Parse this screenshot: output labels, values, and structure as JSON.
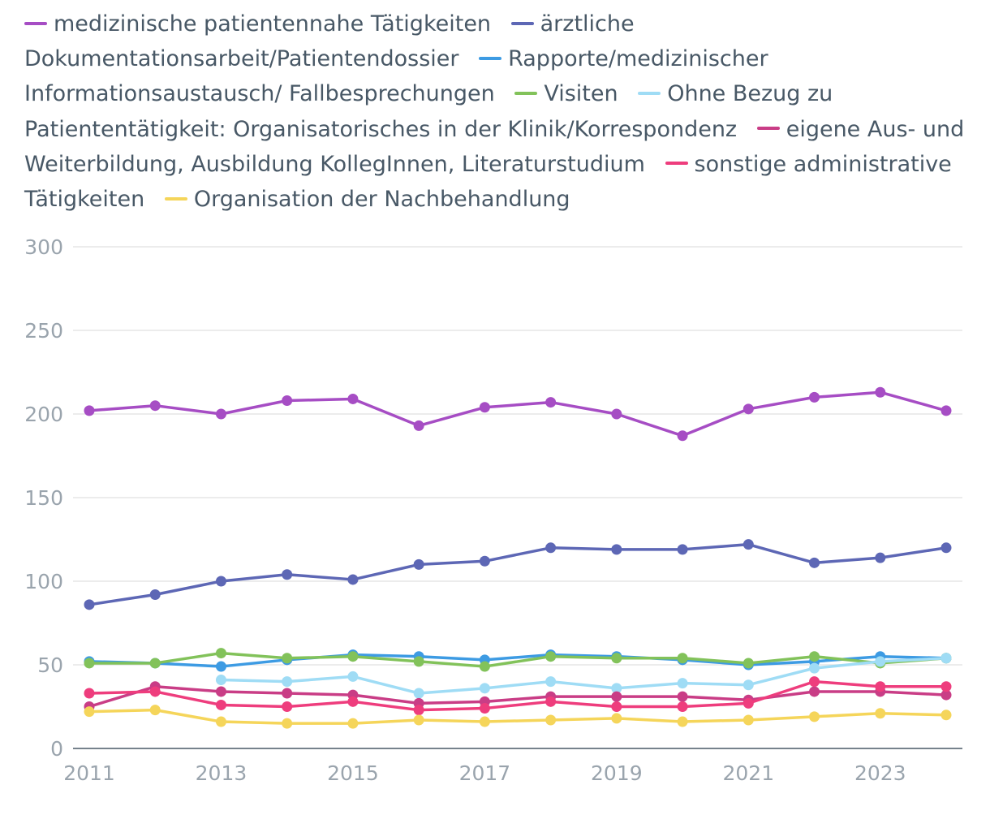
{
  "chart_data": {
    "type": "line",
    "title": "",
    "xlabel": "",
    "ylabel": "",
    "x": [
      2011,
      2012,
      2013,
      2014,
      2015,
      2016,
      2017,
      2018,
      2019,
      2020,
      2021,
      2022,
      2023,
      2024
    ],
    "x_tick_labels": [
      "2011",
      "2013",
      "2015",
      "2017",
      "2019",
      "2021",
      "2023"
    ],
    "y_tick_labels": [
      "0",
      "50",
      "100",
      "150",
      "200",
      "250",
      "300"
    ],
    "ylim": [
      0,
      300
    ],
    "legend_position": "top",
    "series": [
      {
        "name": "medizinische patientennahe Tätigkeiten",
        "color": "#a64dc4",
        "values": [
          202,
          205,
          200,
          208,
          209,
          193,
          204,
          207,
          200,
          187,
          203,
          210,
          213,
          202
        ]
      },
      {
        "name": "ärztliche Dokumentationsarbeit/Patientendossier",
        "color": "#5d67b5",
        "values": [
          86,
          92,
          100,
          104,
          101,
          110,
          112,
          120,
          119,
          119,
          122,
          111,
          114,
          120
        ]
      },
      {
        "name": "Rapporte/medizinischer Informationsaustausch/ Fallbesprechungen",
        "color": "#3d9be3",
        "values": [
          52,
          51,
          49,
          53,
          56,
          55,
          53,
          56,
          55,
          53,
          50,
          52,
          55,
          54
        ]
      },
      {
        "name": "Visiten",
        "color": "#82c25a",
        "values": [
          51,
          51,
          57,
          54,
          55,
          52,
          49,
          55,
          54,
          54,
          51,
          55,
          51,
          54
        ]
      },
      {
        "name": "Ohne Bezug zu Patiententätigkeit: Organisatorisches in der Klinik/Korrespondenz",
        "color": "#9fdcf5",
        "values": [
          null,
          null,
          41,
          40,
          43,
          33,
          36,
          40,
          36,
          39,
          38,
          48,
          52,
          54
        ]
      },
      {
        "name": "eigene Aus- und Weiterbildung, Ausbildung KollegInnen, Literaturstudium",
        "color": "#c93d86",
        "values": [
          25,
          37,
          34,
          33,
          32,
          27,
          28,
          31,
          31,
          31,
          29,
          34,
          34,
          32
        ]
      },
      {
        "name": "sonstige administrative Tätigkeiten",
        "color": "#ee3d7d",
        "values": [
          33,
          34,
          26,
          25,
          28,
          23,
          24,
          28,
          25,
          25,
          27,
          40,
          37,
          37
        ]
      },
      {
        "name": "Organisation der Nachbehandlung",
        "color": "#f5d55a",
        "values": [
          22,
          23,
          16,
          15,
          15,
          17,
          16,
          17,
          18,
          16,
          17,
          19,
          21,
          20
        ]
      }
    ]
  }
}
